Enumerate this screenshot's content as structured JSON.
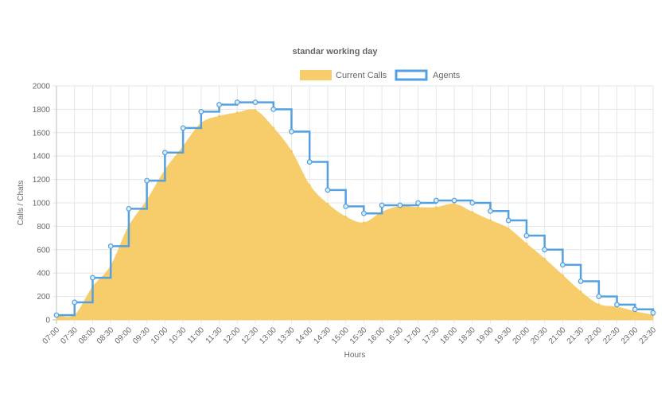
{
  "chart_data": {
    "type": "area",
    "title": "standar working day",
    "xlabel": "Hours",
    "ylabel": "Calls / Chats",
    "ylim": [
      0,
      2000
    ],
    "yticks": [
      0,
      200,
      400,
      600,
      800,
      1000,
      1200,
      1400,
      1600,
      1800,
      2000
    ],
    "grid": true,
    "legend_position": "top",
    "categories": [
      "07:00",
      "07:30",
      "08:00",
      "08:30",
      "09:00",
      "09:30",
      "10:00",
      "10:30",
      "11:00",
      "11:30",
      "12:00",
      "12:30",
      "13:00",
      "13:30",
      "14:00",
      "14:30",
      "15:00",
      "15:30",
      "16:00",
      "16:30",
      "17:00",
      "17:30",
      "18:00",
      "18:30",
      "19:00",
      "19:30",
      "20:00",
      "20:30",
      "21:00",
      "21:30",
      "22:00",
      "22:30",
      "23:00",
      "23:30"
    ],
    "series": [
      {
        "name": "Current Calls",
        "render": "area",
        "color": "#f6cd6a",
        "values": [
          40,
          40,
          280,
          460,
          800,
          1020,
          1280,
          1480,
          1680,
          1740,
          1770,
          1790,
          1640,
          1440,
          1150,
          990,
          880,
          830,
          920,
          970,
          960,
          960,
          990,
          920,
          850,
          780,
          650,
          520,
          380,
          240,
          130,
          110,
          70,
          40
        ]
      },
      {
        "name": "Agents",
        "render": "stepped-line",
        "color": "#55a0e0",
        "values": [
          40,
          150,
          360,
          630,
          950,
          1190,
          1430,
          1640,
          1780,
          1840,
          1860,
          1860,
          1800,
          1610,
          1350,
          1110,
          970,
          910,
          980,
          980,
          1000,
          1020,
          1020,
          1000,
          930,
          850,
          720,
          600,
          470,
          330,
          200,
          130,
          90,
          60
        ]
      }
    ]
  }
}
